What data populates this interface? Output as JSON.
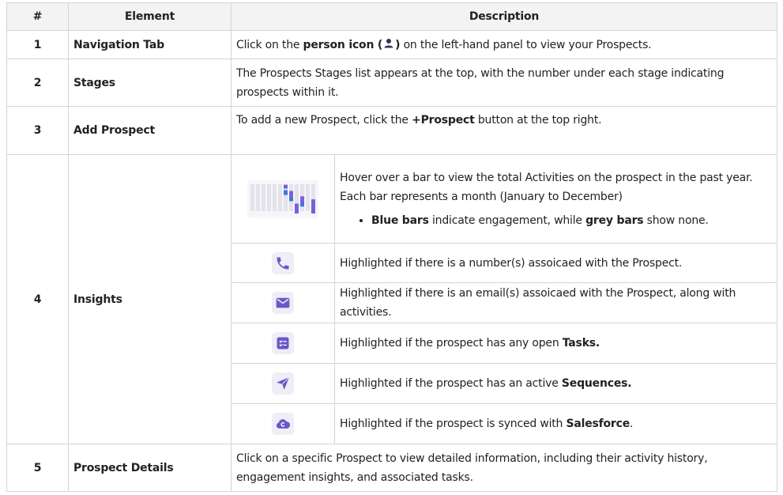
{
  "header": {
    "num": "#",
    "element": "Element",
    "description": "Description"
  },
  "rows": {
    "r1": {
      "num": "1",
      "element": "Navigation Tab",
      "d_a": "Click on the ",
      "d_b": "person icon (",
      "d_c": ")",
      "d_d": " on the left-hand panel to view your Prospects."
    },
    "r2": {
      "num": "2",
      "element": "Stages",
      "desc": "The Prospects Stages list appears at the top, with the number under each stage indicating prospects within it."
    },
    "r3": {
      "num": "3",
      "element": "Add Prospect",
      "d_a": "To add a new Prospect, click the ",
      "d_b": "+Prospect",
      "d_c": " button at the top right."
    },
    "r4": {
      "num": "4",
      "element": "Insights",
      "bars_desc": "Hover over a bar to view the total Activities on the prospect in the past year. Each bar represents a month (January to December)",
      "bullet_a": "Blue bars",
      "bullet_b": " indicate engagement, while ",
      "bullet_c": "grey bars",
      "bullet_d": " show none.",
      "phone": "Highlighted if there is a number(s) assoicaed with the Prospect.",
      "email": "Highlighted if there is an email(s) assoicaed with the Prospect, along with activities.",
      "tasks_a": "Highlighted if the prospect has any open ",
      "tasks_b": "Tasks.",
      "seq_a": "Highlighted if the prospect has an active ",
      "seq_b": "Sequences.",
      "sf_a": "Highlighted if the prospect is synced with ",
      "sf_b": "Salesforce",
      "sf_c": "."
    },
    "r5": {
      "num": "5",
      "element": "Prospect Details",
      "desc": "Click on a specific Prospect to view detailed information, including their activity history, engagement insights, and associated tasks."
    }
  },
  "activity_bars": {
    "months": 12,
    "blue_months": [
      7,
      8,
      9,
      10,
      12
    ],
    "colors": {
      "grey": "#e4e3ec",
      "blue": "#3a7bd5",
      "purple": "#7c5fe0",
      "icon": "#6a57c8"
    }
  },
  "icons": [
    "person-icon",
    "activity-bars-icon",
    "phone-icon",
    "email-icon",
    "tasks-icon",
    "sequence-icon",
    "salesforce-icon"
  ]
}
